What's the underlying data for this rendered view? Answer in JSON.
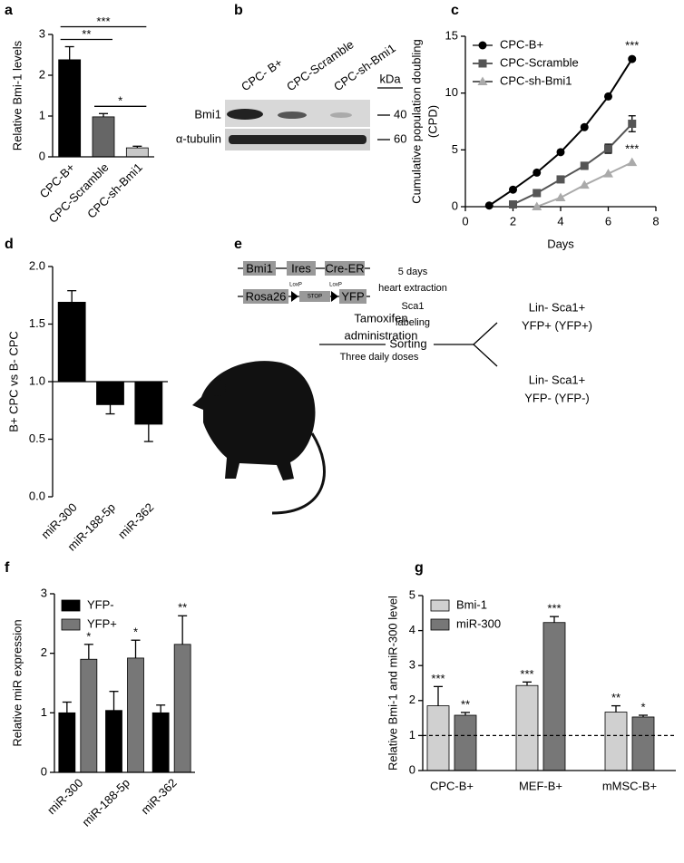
{
  "chart_data": [
    {
      "panel_label": "a",
      "type": "bar",
      "ylabel": "Relative Bmi-1 levels",
      "categories": [
        "CPC-B+",
        "CPC-Scramble",
        "CPC-sh-Bmi1"
      ],
      "values": [
        2.38,
        0.98,
        0.22
      ],
      "errors": [
        0.32,
        0.08,
        0.04
      ],
      "colors": [
        "#000000",
        "#666666",
        "#c8c8c8"
      ],
      "ylim": [
        0,
        3
      ],
      "yticks": [
        0,
        1,
        2,
        3
      ],
      "brackets": [
        {
          "span": [
            0,
            1
          ],
          "label": "**"
        },
        {
          "span": [
            0,
            2
          ],
          "label": "***"
        },
        {
          "span": [
            1,
            2
          ],
          "label": "*"
        }
      ]
    },
    {
      "panel_label": "c",
      "type": "line",
      "xlabel": "Days",
      "ylabel": [
        "Cumulative population doubling",
        "(CPD)"
      ],
      "xlim": [
        0,
        8
      ],
      "xticks": [
        0,
        2,
        4,
        6,
        8
      ],
      "ylim": [
        0,
        15
      ],
      "yticks": [
        0,
        5,
        10,
        15
      ],
      "legend": "upper left",
      "series": [
        {
          "name": "CPC-B+",
          "color": "#000000",
          "marker": "circle",
          "x": [
            1,
            2,
            3,
            4,
            5,
            6,
            7
          ],
          "values": [
            0.1,
            1.5,
            3.0,
            4.8,
            7.0,
            9.7,
            13.0
          ],
          "significance": "***"
        },
        {
          "name": "CPC-Scramble",
          "color": "#555555",
          "marker": "square",
          "x": [
            2,
            3,
            4,
            5,
            6,
            7
          ],
          "values": [
            0.2,
            1.2,
            2.4,
            3.6,
            5.1,
            7.3
          ],
          "errors": [
            0,
            0.2,
            0.2,
            0.3,
            0.4,
            0.7
          ]
        },
        {
          "name": "CPC-sh-Bmi1",
          "color": "#aaaaaa",
          "marker": "triangle",
          "x": [
            3,
            4,
            5,
            6,
            7
          ],
          "values": [
            0.0,
            0.8,
            1.9,
            2.9,
            3.9
          ],
          "significance": "***"
        }
      ]
    },
    {
      "panel_label": "d",
      "type": "bar",
      "ylabel": "B+ CPC vs B- CPC",
      "categories": [
        "miR-300",
        "miR-188-5p",
        "miR-362"
      ],
      "values": [
        1.69,
        0.8,
        0.63
      ],
      "errors": [
        0.1,
        0.08,
        0.15
      ],
      "color": "#000000",
      "baseline": 1,
      "ylim": [
        0,
        2
      ],
      "yticks": [
        {
          "value": 0,
          "label": "0.0"
        },
        0.5,
        {
          "value": 1,
          "label": "1.0"
        },
        1.5,
        {
          "value": 2,
          "label": "2.0"
        }
      ]
    },
    {
      "panel_label": "f",
      "type": "grouped_bar",
      "ylabel": "Relative miR expression",
      "categories": [
        "miR-300",
        "miR-188-5p",
        "miR-362"
      ],
      "ylim": [
        0,
        3
      ],
      "yticks": [
        0,
        1,
        2,
        3
      ],
      "legend": "upper left",
      "series": [
        {
          "name": "YFP-",
          "color": "#000000",
          "values": [
            1.0,
            1.04,
            1.0
          ],
          "errors": [
            0.18,
            0.32,
            0.13
          ]
        },
        {
          "name": "YFP+",
          "color": "#777777",
          "values": [
            1.9,
            1.92,
            2.15
          ],
          "errors": [
            0.25,
            0.3,
            0.48
          ],
          "significance": [
            "*",
            "*",
            "**"
          ]
        }
      ]
    },
    {
      "panel_label": "g",
      "type": "grouped_bar",
      "ylabel": "Relative Bmi-1 and miR-300 level",
      "categories": [
        "CPC-B+",
        "MEF-B+",
        "mMSC-B+"
      ],
      "ylim": [
        0,
        5
      ],
      "yticks": [
        0,
        1,
        2,
        3,
        4,
        5
      ],
      "legend": "upper left",
      "reference_line": 1,
      "series": [
        {
          "name": "Bmi-1",
          "color": "#d0d0d0",
          "values": [
            1.85,
            2.43,
            1.67
          ],
          "errors": [
            0.55,
            0.1,
            0.18
          ],
          "significance": [
            "***",
            "***",
            "**"
          ]
        },
        {
          "name": "miR-300",
          "color": "#777777",
          "values": [
            1.58,
            4.23,
            1.53
          ],
          "errors": [
            0.08,
            0.17,
            0.05
          ],
          "significance": [
            "**",
            "***",
            "*"
          ]
        }
      ]
    }
  ],
  "blot": {
    "panel_label": "b",
    "lanes": [
      "CPC- B+",
      "CPC-Scramble",
      "CPC-sh-Bmi1"
    ],
    "unit": "kDa",
    "rows": [
      {
        "name": "Bmi1",
        "marker": 40
      },
      {
        "name": "α-tubulin",
        "marker": 60
      }
    ]
  },
  "schematic": {
    "panel_label": "e",
    "construct1": [
      "Bmi1",
      "Ires",
      "Cre-ER"
    ],
    "construct2": [
      "Rosa26",
      "STOP",
      "YFP"
    ],
    "site": "LoxP",
    "treatment": [
      "Tamoxifen",
      "administration"
    ],
    "schedule": "Three daily doses",
    "processing": [
      "5 days",
      "heart extraction",
      "Sca1",
      "labeling"
    ],
    "step": "Sorting",
    "outputs": [
      [
        "Lin- Sca1+",
        "YFP+ (YFP+)"
      ],
      [
        "Lin- Sca1+",
        "YFP- (YFP-)"
      ]
    ]
  }
}
